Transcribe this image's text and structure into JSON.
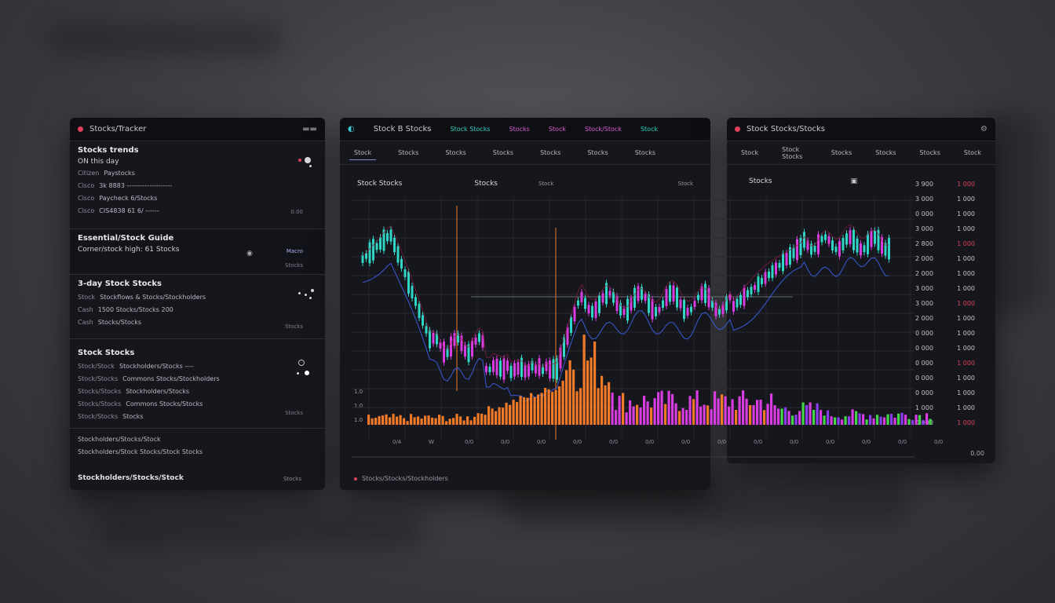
{
  "colors": {
    "teal": "#2fd5c5",
    "magenta": "#d63ce0",
    "orange": "#f07a28",
    "purple": "#8a3cf0",
    "green": "#43d64a",
    "blue": "#3a5ad6",
    "red": "#e0405a"
  },
  "left": {
    "title": "Stocks/Tracker",
    "sections": [
      {
        "title": "Stocks trends",
        "subtitle": "ON this day",
        "rows": [
          {
            "k": "Citizen",
            "v": "Paystocks"
          },
          {
            "k": "Cisco",
            "v": "3k 8883 --------------------"
          },
          {
            "k": "Cisco",
            "v": "Paycheck 6/Stocks"
          },
          {
            "k": "Cisco",
            "v": "CIS4838 61 6/ ------"
          }
        ],
        "side": "0.00"
      },
      {
        "title": "Essential/Stock Guide",
        "subtitle": "Corner/stock high: 61 Stocks",
        "side": "Macro",
        "side2": "Stocks"
      },
      {
        "title": "3-day Stock Stocks",
        "rows": [
          {
            "k": "Stock",
            "v": "Stockflows & Stocks/Stockholders"
          },
          {
            "k": "Cash",
            "v": "1500 Stocks/Stocks 200"
          },
          {
            "k": "Cash",
            "v": "Stocks/Stocks"
          }
        ],
        "side": "Stocks"
      },
      {
        "title": "Stock Stocks",
        "rows": [
          {
            "k": "Stock/Stock",
            "v": "Stockholders/Stocks ----"
          },
          {
            "k": "Stock/Stocks",
            "v": "Commons Stocks/Stockholders"
          },
          {
            "k": "Stocks/Stocks",
            "v": "Stockholders/Stocks"
          },
          {
            "k": "Stocks/Stocks",
            "v": "Commons Stocks/Stocks"
          },
          {
            "k": "Stock/Stocks",
            "v": "Stocks"
          }
        ],
        "side": "Stocks"
      }
    ],
    "bottom_rows": [
      "Stockholders/Stocks/Stock",
      "Stockholders/Stock Stocks/Stock Stocks"
    ],
    "footer": "Stockholders/Stocks/Stock",
    "footer_side": "Stocks"
  },
  "center": {
    "title": "Stock B Stocks",
    "menu": [
      "Stock Stocks",
      "Stocks",
      "Stock",
      "Stock/Stock",
      "Stock"
    ],
    "tabs": [
      "Stock",
      "Stocks",
      "Stocks",
      "Stocks",
      "Stocks",
      "Stocks",
      "Stocks"
    ],
    "chart_title": "Stock Stocks",
    "chart_mid": "Stocks",
    "chart_unit": "Stock",
    "chart_right": "Stock",
    "y_labels": [
      "1.0",
      "1.0",
      "1.0"
    ],
    "footer": "Stocks/Stocks/Stockholders"
  },
  "right": {
    "title": "Stock Stocks/Stocks",
    "tabs": [
      "Stock",
      "Stock Stocks",
      "Stocks",
      "Stocks",
      "Stocks",
      "Stock"
    ],
    "chart_title": "Stocks",
    "prices": [
      {
        "p": "3 900",
        "c": "1 000"
      },
      {
        "p": "3 000",
        "c": "1 000"
      },
      {
        "p": "0 000",
        "c": "1 000"
      },
      {
        "p": "3 000",
        "c": "1 000"
      },
      {
        "p": "2 800",
        "c": "1 000"
      },
      {
        "p": "2 000",
        "c": "1 000"
      },
      {
        "p": "2 000",
        "c": "1 000"
      },
      {
        "p": "3 000",
        "c": "1 000"
      },
      {
        "p": "3 000",
        "c": "1 000"
      },
      {
        "p": "2 000",
        "c": "1 000"
      },
      {
        "p": "0 000",
        "c": "1 000"
      },
      {
        "p": "0 000",
        "c": "1 000"
      },
      {
        "p": "0 000",
        "c": "1 000"
      },
      {
        "p": "0 000",
        "c": "1 000"
      },
      {
        "p": "0 000",
        "c": "1 000"
      },
      {
        "p": "1 000",
        "c": "1 000"
      },
      {
        "p": "0 000",
        "c": "1 000"
      }
    ],
    "footer": "0.00"
  }
}
